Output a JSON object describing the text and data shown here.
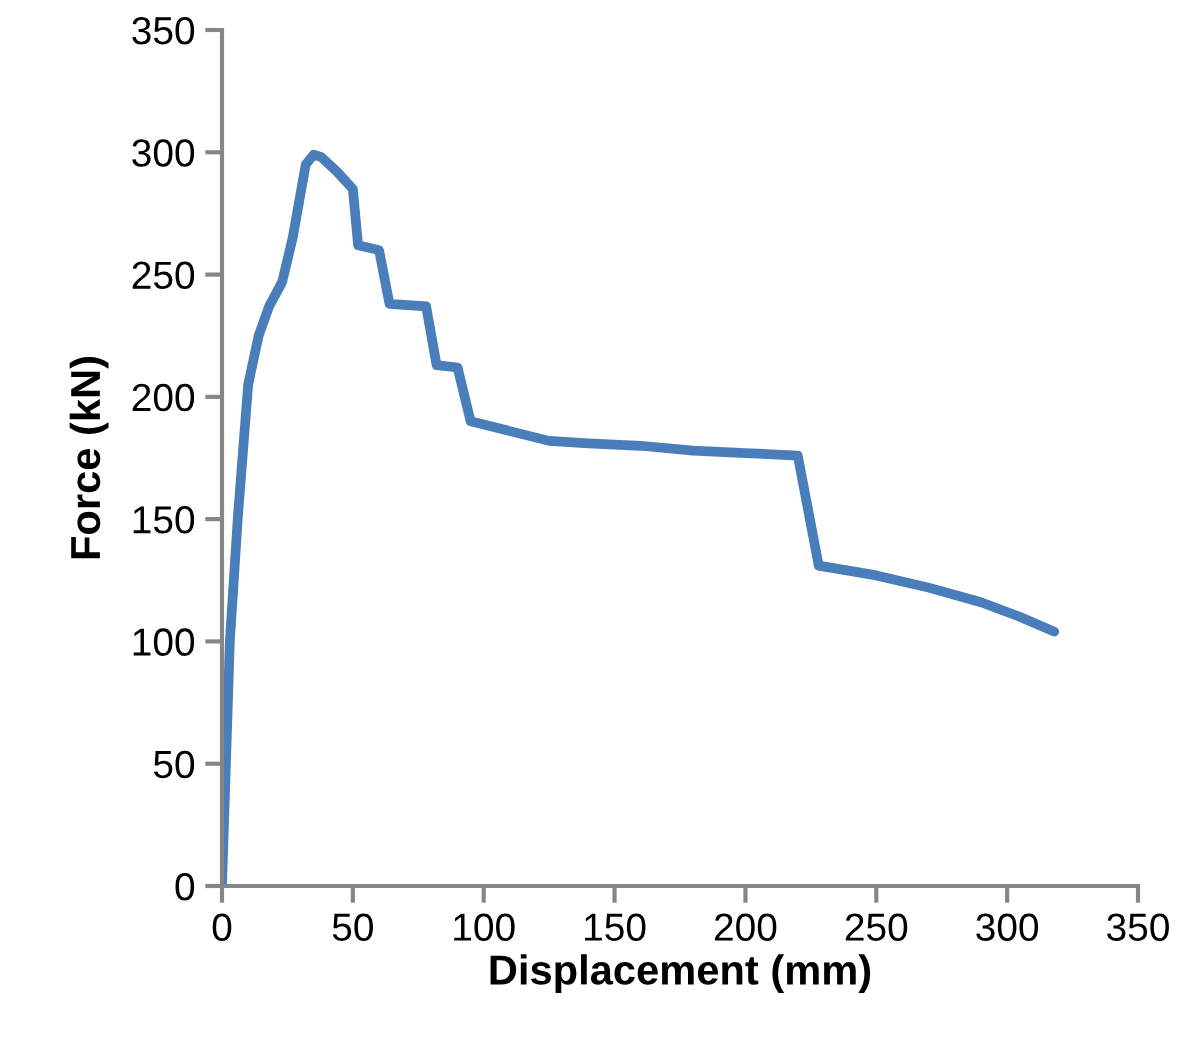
{
  "chart_data": {
    "type": "line",
    "xlabel": "Displacement (mm)",
    "ylabel": "Force (kN)",
    "xlim": [
      0,
      350
    ],
    "xticks": [
      0,
      50,
      100,
      150,
      200,
      250,
      300,
      350
    ],
    "ylim": [
      0,
      350
    ],
    "yticks": [
      0,
      50,
      100,
      150,
      200,
      250,
      300,
      350
    ],
    "grid": false,
    "legend": false,
    "marker": "none",
    "line_style": "solid",
    "series": [
      {
        "color": "#4a7ebb",
        "x": [
          0,
          3,
          6,
          10,
          14,
          18,
          23,
          27,
          32,
          35,
          38,
          44,
          50,
          52,
          60,
          64,
          78,
          82,
          90,
          95,
          110,
          125,
          140,
          160,
          180,
          200,
          220,
          228,
          250,
          270,
          290,
          305,
          318
        ],
        "values": [
          0,
          100,
          150,
          205,
          225,
          237,
          247,
          265,
          295,
          299,
          298,
          292,
          285,
          262,
          260,
          238,
          237,
          213,
          212,
          190,
          186,
          182,
          181,
          180,
          178,
          177,
          176,
          131,
          127,
          122,
          116,
          110,
          104
        ]
      }
    ]
  }
}
